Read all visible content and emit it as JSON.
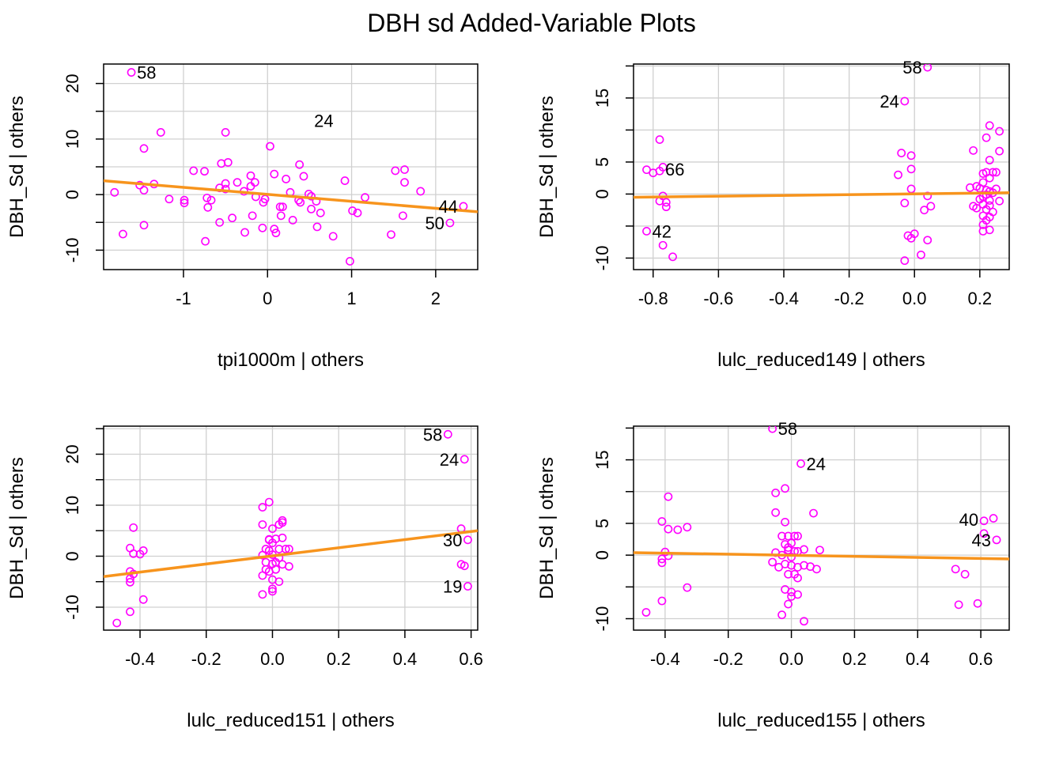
{
  "title": "DBH sd Added-Variable Plots",
  "colors": {
    "points": "#ff00ff",
    "line": "#f7941d",
    "grid": "#d0d0d0",
    "axis": "#000000"
  },
  "chart_data": [
    {
      "type": "scatter",
      "xlabel": "tpi1000m | others",
      "ylabel": "DBH_Sd  | others",
      "xlim": [
        -1.95,
        2.5
      ],
      "ylim": [
        -13.5,
        23.5
      ],
      "xticks": [
        -1,
        0,
        1,
        2
      ],
      "xtick_labels": [
        "-1",
        "0",
        "1",
        "2"
      ],
      "yticks": [
        -10,
        0,
        10,
        20
      ],
      "ytick_labels": [
        "-10",
        "0",
        "10",
        "20"
      ],
      "minor_yticks": [
        -5,
        5,
        15
      ],
      "grid": true,
      "fit_line": [
        [
          -1.95,
          2.5
        ],
        [
          2.5,
          -3.1
        ]
      ],
      "points": [
        [
          -1.62,
          22.0
        ],
        [
          -1.27,
          11.2
        ],
        [
          -1.47,
          8.3
        ],
        [
          -1.35,
          1.9
        ],
        [
          -1.52,
          1.7
        ],
        [
          -1.47,
          0.8
        ],
        [
          -1.82,
          0.4
        ],
        [
          -1.17,
          -0.8
        ],
        [
          -0.99,
          -1.0
        ],
        [
          -0.99,
          -1.5
        ],
        [
          -1.47,
          -5.5
        ],
        [
          -1.72,
          -7.1
        ],
        [
          -0.88,
          4.3
        ],
        [
          -0.75,
          4.2
        ],
        [
          -0.72,
          -0.6
        ],
        [
          -0.67,
          -1.0
        ],
        [
          -0.71,
          -2.3
        ],
        [
          -0.57,
          -5.0
        ],
        [
          -0.74,
          -8.4
        ],
        [
          -0.55,
          5.6
        ],
        [
          -0.47,
          5.8
        ],
        [
          -0.5,
          11.2
        ],
        [
          -0.5,
          2.0
        ],
        [
          -0.57,
          1.2
        ],
        [
          -0.5,
          1.0
        ],
        [
          -0.36,
          2.2
        ],
        [
          -0.28,
          0.6
        ],
        [
          -0.42,
          -4.2
        ],
        [
          -0.27,
          -6.8
        ],
        [
          -0.2,
          3.4
        ],
        [
          -0.15,
          2.2
        ],
        [
          -0.2,
          1.5
        ],
        [
          -0.14,
          -0.4
        ],
        [
          -0.03,
          -0.8
        ],
        [
          -0.05,
          -1.4
        ],
        [
          -0.18,
          -3.8
        ],
        [
          -0.06,
          -6.0
        ],
        [
          0.03,
          8.7
        ],
        [
          0.08,
          3.7
        ],
        [
          0.22,
          2.8
        ],
        [
          0.15,
          -2.2
        ],
        [
          0.18,
          -2.2
        ],
        [
          0.16,
          -3.8
        ],
        [
          0.08,
          -6.2
        ],
        [
          0.1,
          -6.9
        ],
        [
          0.3,
          -4.6
        ],
        [
          0.27,
          0.4
        ],
        [
          0.38,
          5.4
        ],
        [
          0.43,
          3.3
        ],
        [
          0.37,
          -1.0
        ],
        [
          0.39,
          -1.4
        ],
        [
          0.49,
          0.1
        ],
        [
          0.52,
          -0.3
        ],
        [
          0.52,
          -2.6
        ],
        [
          0.58,
          -1.2
        ],
        [
          0.63,
          -3.3
        ],
        [
          0.59,
          -5.8
        ],
        [
          0.78,
          -7.5
        ],
        [
          0.92,
          2.5
        ],
        [
          0.98,
          -12.0
        ],
        [
          1.01,
          -2.9
        ],
        [
          1.07,
          -3.3
        ],
        [
          1.16,
          -0.5
        ],
        [
          1.47,
          -7.2
        ],
        [
          1.52,
          4.3
        ],
        [
          1.63,
          4.5
        ],
        [
          1.63,
          2.2
        ],
        [
          1.61,
          -3.8
        ],
        [
          1.82,
          0.6
        ],
        [
          2.17,
          -5.1
        ],
        [
          2.33,
          -2.1
        ]
      ],
      "labels": [
        {
          "x": -1.62,
          "y": 22.0,
          "text": "58",
          "side": "right"
        },
        {
          "x": 0.85,
          "y": 13.3,
          "text": "24",
          "side": "left"
        },
        {
          "x": 2.33,
          "y": -2.1,
          "text": "44",
          "side": "left"
        },
        {
          "x": 2.17,
          "y": -5.1,
          "text": "50",
          "side": "left"
        }
      ]
    },
    {
      "type": "scatter",
      "xlabel": "lulc_reduced149 | others",
      "ylabel": "DBH_Sd  | others",
      "xlim": [
        -0.86,
        0.29
      ],
      "ylim": [
        -11.8,
        20.3
      ],
      "xticks": [
        -0.8,
        -0.6,
        -0.4,
        -0.2,
        0.0,
        0.2
      ],
      "xtick_labels": [
        "-0.8",
        "-0.6",
        "-0.4",
        "-0.2",
        "0.0",
        "0.2"
      ],
      "yticks": [
        -10,
        0,
        5,
        15
      ],
      "ytick_labels": [
        "-10",
        "0",
        "5",
        "15"
      ],
      "minor_yticks": [
        -5,
        10,
        20
      ],
      "grid": true,
      "fit_line": [
        [
          -0.86,
          -0.5
        ],
        [
          0.29,
          0.2
        ]
      ],
      "points": [
        [
          -0.82,
          3.8
        ],
        [
          -0.8,
          3.3
        ],
        [
          -0.78,
          3.6
        ],
        [
          -0.77,
          4.2
        ],
        [
          -0.78,
          8.5
        ],
        [
          -0.77,
          -0.3
        ],
        [
          -0.78,
          -1.1
        ],
        [
          -0.76,
          -1.3
        ],
        [
          -0.76,
          -2.0
        ],
        [
          -0.82,
          -5.8
        ],
        [
          -0.77,
          -8.0
        ],
        [
          -0.74,
          -9.8
        ],
        [
          -0.04,
          6.4
        ],
        [
          -0.01,
          6.0
        ],
        [
          -0.05,
          3.0
        ],
        [
          -0.01,
          3.9
        ],
        [
          -0.01,
          0.8
        ],
        [
          -0.03,
          -1.4
        ],
        [
          0.04,
          -0.3
        ],
        [
          0.05,
          -1.9
        ],
        [
          0.03,
          -2.5
        ],
        [
          -0.02,
          -6.5
        ],
        [
          0.0,
          -6.2
        ],
        [
          -0.01,
          -6.9
        ],
        [
          0.04,
          -7.2
        ],
        [
          -0.03,
          -10.4
        ],
        [
          0.02,
          -9.5
        ],
        [
          -0.03,
          14.5
        ],
        [
          0.04,
          19.8
        ],
        [
          0.17,
          1.0
        ],
        [
          0.18,
          6.8
        ],
        [
          0.22,
          8.8
        ],
        [
          0.23,
          10.7
        ],
        [
          0.26,
          9.8
        ],
        [
          0.26,
          6.7
        ],
        [
          0.23,
          5.3
        ],
        [
          0.22,
          3.4
        ],
        [
          0.24,
          3.4
        ],
        [
          0.25,
          3.4
        ],
        [
          0.21,
          3.2
        ],
        [
          0.23,
          2.5
        ],
        [
          0.21,
          1.8
        ],
        [
          0.25,
          0.8
        ],
        [
          0.19,
          1.2
        ],
        [
          0.2,
          0.9
        ],
        [
          0.22,
          0.6
        ],
        [
          0.23,
          0.4
        ],
        [
          0.24,
          0.2
        ],
        [
          0.22,
          -0.1
        ],
        [
          0.21,
          -0.4
        ],
        [
          0.2,
          -0.8
        ],
        [
          0.23,
          -1.0
        ],
        [
          0.26,
          -1.1
        ],
        [
          0.21,
          -1.6
        ],
        [
          0.23,
          -1.8
        ],
        [
          0.18,
          -1.9
        ],
        [
          0.19,
          -2.2
        ],
        [
          0.22,
          -2.4
        ],
        [
          0.24,
          -2.8
        ],
        [
          0.21,
          -3.4
        ],
        [
          0.23,
          -3.6
        ],
        [
          0.22,
          -4.1
        ],
        [
          0.21,
          -4.8
        ],
        [
          0.23,
          -5.6
        ],
        [
          0.21,
          -5.8
        ]
      ],
      "labels": [
        {
          "x": -0.78,
          "y": 3.9,
          "text": "66",
          "side": "right"
        },
        {
          "x": -0.82,
          "y": -5.8,
          "text": "42",
          "side": "right"
        },
        {
          "x": -0.03,
          "y": 14.5,
          "text": "24",
          "side": "left"
        },
        {
          "x": 0.04,
          "y": 19.8,
          "text": "58",
          "side": "left"
        }
      ]
    },
    {
      "type": "scatter",
      "xlabel": "lulc_reduced151 | others",
      "ylabel": "DBH_Sd  | others",
      "xlim": [
        -0.51,
        0.62
      ],
      "ylim": [
        -14.5,
        25.5
      ],
      "xticks": [
        -0.4,
        -0.2,
        0.0,
        0.2,
        0.4,
        0.6
      ],
      "xtick_labels": [
        "-0.4",
        "-0.2",
        "0.0",
        "0.2",
        "0.4",
        "0.6"
      ],
      "yticks": [
        -10,
        0,
        10,
        20
      ],
      "ytick_labels": [
        "-10",
        "0",
        "10",
        "20"
      ],
      "minor_yticks": [
        -5,
        5,
        15,
        25
      ],
      "grid": true,
      "fit_line": [
        [
          -0.51,
          -4.0
        ],
        [
          0.62,
          5.0
        ]
      ],
      "points": [
        [
          -0.47,
          -13.1
        ],
        [
          -0.43,
          -10.9
        ],
        [
          -0.39,
          -8.5
        ],
        [
          -0.43,
          -5.1
        ],
        [
          -0.43,
          -4.4
        ],
        [
          -0.42,
          -3.5
        ],
        [
          -0.43,
          -3.0
        ],
        [
          -0.43,
          1.6
        ],
        [
          -0.42,
          0.5
        ],
        [
          -0.4,
          0.4
        ],
        [
          -0.39,
          1.1
        ],
        [
          -0.42,
          5.6
        ],
        [
          -0.03,
          9.6
        ],
        [
          -0.01,
          10.6
        ],
        [
          -0.03,
          6.2
        ],
        [
          0.0,
          5.4
        ],
        [
          0.02,
          6.2
        ],
        [
          0.03,
          6.6
        ],
        [
          0.03,
          7.0
        ],
        [
          -0.01,
          3.2
        ],
        [
          0.01,
          3.4
        ],
        [
          0.0,
          2.6
        ],
        [
          -0.02,
          1.4
        ],
        [
          -0.01,
          1.1
        ],
        [
          0.02,
          1.4
        ],
        [
          0.04,
          1.4
        ],
        [
          0.05,
          1.4
        ],
        [
          -0.03,
          0.2
        ],
        [
          0.0,
          0.3
        ],
        [
          0.02,
          -0.3
        ],
        [
          -0.02,
          -1.2
        ],
        [
          0.0,
          -1.5
        ],
        [
          0.01,
          -1.2
        ],
        [
          0.03,
          -1.6
        ],
        [
          0.05,
          -2.0
        ],
        [
          -0.02,
          -2.6
        ],
        [
          -0.01,
          -3.0
        ],
        [
          0.01,
          -2.6
        ],
        [
          -0.03,
          -3.8
        ],
        [
          0.0,
          -4.6
        ],
        [
          0.02,
          -5.0
        ],
        [
          0.0,
          -6.4
        ],
        [
          -0.03,
          -7.5
        ],
        [
          0.0,
          -6.9
        ],
        [
          -0.01,
          3.3
        ],
        [
          0.03,
          3.6
        ],
        [
          0.53,
          23.9
        ],
        [
          0.58,
          19.0
        ],
        [
          0.57,
          5.4
        ],
        [
          0.59,
          3.2
        ],
        [
          0.57,
          -1.6
        ],
        [
          0.58,
          -1.9
        ],
        [
          0.59,
          -5.9
        ]
      ],
      "labels": [
        {
          "x": 0.53,
          "y": 23.9,
          "text": "58",
          "side": "left"
        },
        {
          "x": 0.58,
          "y": 19.0,
          "text": "24",
          "side": "left"
        },
        {
          "x": 0.59,
          "y": 3.2,
          "text": "30",
          "side": "left"
        },
        {
          "x": 0.59,
          "y": -5.9,
          "text": "19",
          "side": "left"
        }
      ]
    },
    {
      "type": "scatter",
      "xlabel": "lulc_reduced155 | others",
      "ylabel": "DBH_Sd  | others",
      "xlim": [
        -0.5,
        0.69
      ],
      "ylim": [
        -11.8,
        20.3
      ],
      "xticks": [
        -0.4,
        -0.2,
        0.0,
        0.2,
        0.4,
        0.6
      ],
      "xtick_labels": [
        "-0.4",
        "-0.2",
        "0.0",
        "0.2",
        "0.4",
        "0.6"
      ],
      "yticks": [
        -10,
        0,
        5,
        15
      ],
      "ytick_labels": [
        "-10",
        "0",
        "5",
        "15"
      ],
      "minor_yticks": [
        -5,
        10,
        20
      ],
      "grid": true,
      "fit_line": [
        [
          -0.5,
          0.4
        ],
        [
          0.69,
          -0.6
        ]
      ],
      "points": [
        [
          -0.46,
          -9.0
        ],
        [
          -0.41,
          -7.2
        ],
        [
          -0.39,
          9.2
        ],
        [
          -0.41,
          5.3
        ],
        [
          -0.39,
          4.1
        ],
        [
          -0.36,
          4.0
        ],
        [
          -0.33,
          4.4
        ],
        [
          -0.4,
          0.5
        ],
        [
          -0.39,
          -0.1
        ],
        [
          -0.41,
          -0.6
        ],
        [
          -0.41,
          -1.2
        ],
        [
          -0.33,
          -5.1
        ],
        [
          -0.06,
          19.9
        ],
        [
          -0.05,
          6.7
        ],
        [
          -0.05,
          9.8
        ],
        [
          -0.02,
          10.5
        ],
        [
          -0.02,
          5.2
        ],
        [
          -0.01,
          3.0
        ],
        [
          0.01,
          3.0
        ],
        [
          0.02,
          3.0
        ],
        [
          -0.02,
          1.7
        ],
        [
          -0.01,
          1.2
        ],
        [
          0.0,
          1.9
        ],
        [
          -0.01,
          0.8
        ],
        [
          0.01,
          0.6
        ],
        [
          0.02,
          0.6
        ],
        [
          0.04,
          0.9
        ],
        [
          -0.05,
          0.4
        ],
        [
          -0.03,
          0.0
        ],
        [
          0.0,
          -0.3
        ],
        [
          -0.06,
          -1.1
        ],
        [
          -0.04,
          -1.9
        ],
        [
          -0.02,
          -1.4
        ],
        [
          0.0,
          -1.6
        ],
        [
          0.02,
          -1.9
        ],
        [
          0.04,
          -1.6
        ],
        [
          0.06,
          -1.8
        ],
        [
          0.08,
          -2.2
        ],
        [
          -0.01,
          -3.0
        ],
        [
          0.01,
          -3.0
        ],
        [
          0.02,
          -3.6
        ],
        [
          -0.02,
          -5.4
        ],
        [
          0.0,
          -5.8
        ],
        [
          0.02,
          -6.2
        ],
        [
          0.0,
          -6.5
        ],
        [
          -0.01,
          -7.7
        ],
        [
          -0.03,
          -9.4
        ],
        [
          0.04,
          -10.4
        ],
        [
          -0.03,
          3.0
        ],
        [
          0.09,
          0.8
        ],
        [
          0.03,
          14.4
        ],
        [
          0.07,
          6.6
        ],
        [
          0.52,
          -2.2
        ],
        [
          0.55,
          -3.0
        ],
        [
          0.53,
          -7.8
        ],
        [
          0.59,
          -7.6
        ],
        [
          0.61,
          5.4
        ],
        [
          0.64,
          5.8
        ],
        [
          0.61,
          3.4
        ],
        [
          0.65,
          2.4
        ]
      ],
      "labels": [
        {
          "x": -0.06,
          "y": 19.9,
          "text": "58",
          "side": "right"
        },
        {
          "x": 0.03,
          "y": 14.4,
          "text": "24",
          "side": "right"
        },
        {
          "x": 0.61,
          "y": 5.6,
          "text": "40",
          "side": "left"
        },
        {
          "x": 0.65,
          "y": 2.4,
          "text": "43",
          "side": "left"
        }
      ]
    }
  ]
}
